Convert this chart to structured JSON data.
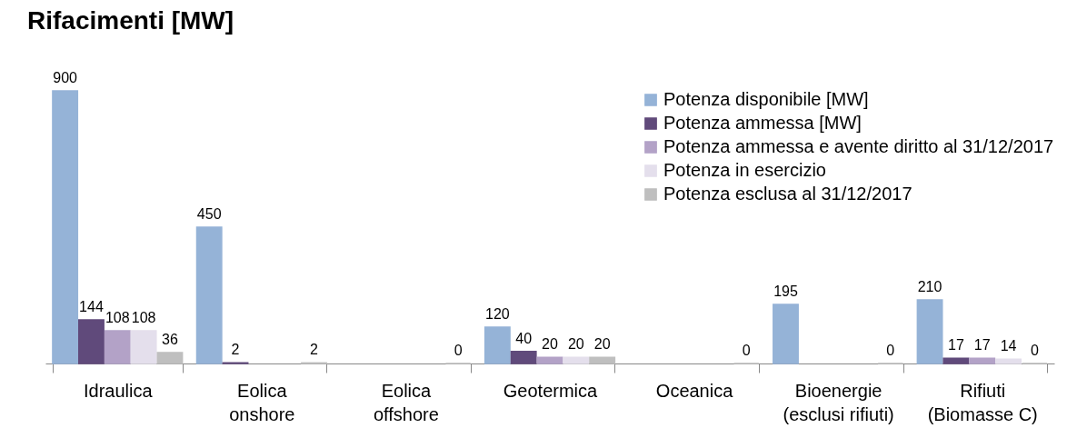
{
  "chart_data": {
    "type": "bar",
    "title": "Rifacimenti [MW]",
    "categories": [
      "Idraulica",
      "Eolica onshore",
      "Eolica offshore",
      "Geotermica",
      "Oceanica",
      "Bioenergie (esclusi rifiuti)",
      "Rifiuti (Biomasse C)"
    ],
    "series": [
      {
        "name": "Potenza disponibile [MW]",
        "color": "#95b3d7",
        "values": [
          900,
          450,
          null,
          120,
          null,
          195,
          210
        ]
      },
      {
        "name": "Potenza ammessa [MW]",
        "color": "#604a7b",
        "values": [
          144,
          2,
          null,
          40,
          null,
          null,
          17
        ]
      },
      {
        "name": "Potenza ammessa e avente diritto al 31/12/2017",
        "color": "#b3a2c7",
        "values": [
          108,
          null,
          null,
          20,
          null,
          null,
          17
        ]
      },
      {
        "name": "Potenza in esercizio",
        "color": "#e4dfec",
        "values": [
          108,
          null,
          null,
          20,
          null,
          null,
          14
        ]
      },
      {
        "name": "Potenza esclusa al 31/12/2017",
        "color": "#bfbfbf",
        "values": [
          36,
          2,
          0,
          20,
          0,
          0,
          0
        ]
      }
    ],
    "data_labels": true,
    "legend": "top right",
    "grid": false
  }
}
